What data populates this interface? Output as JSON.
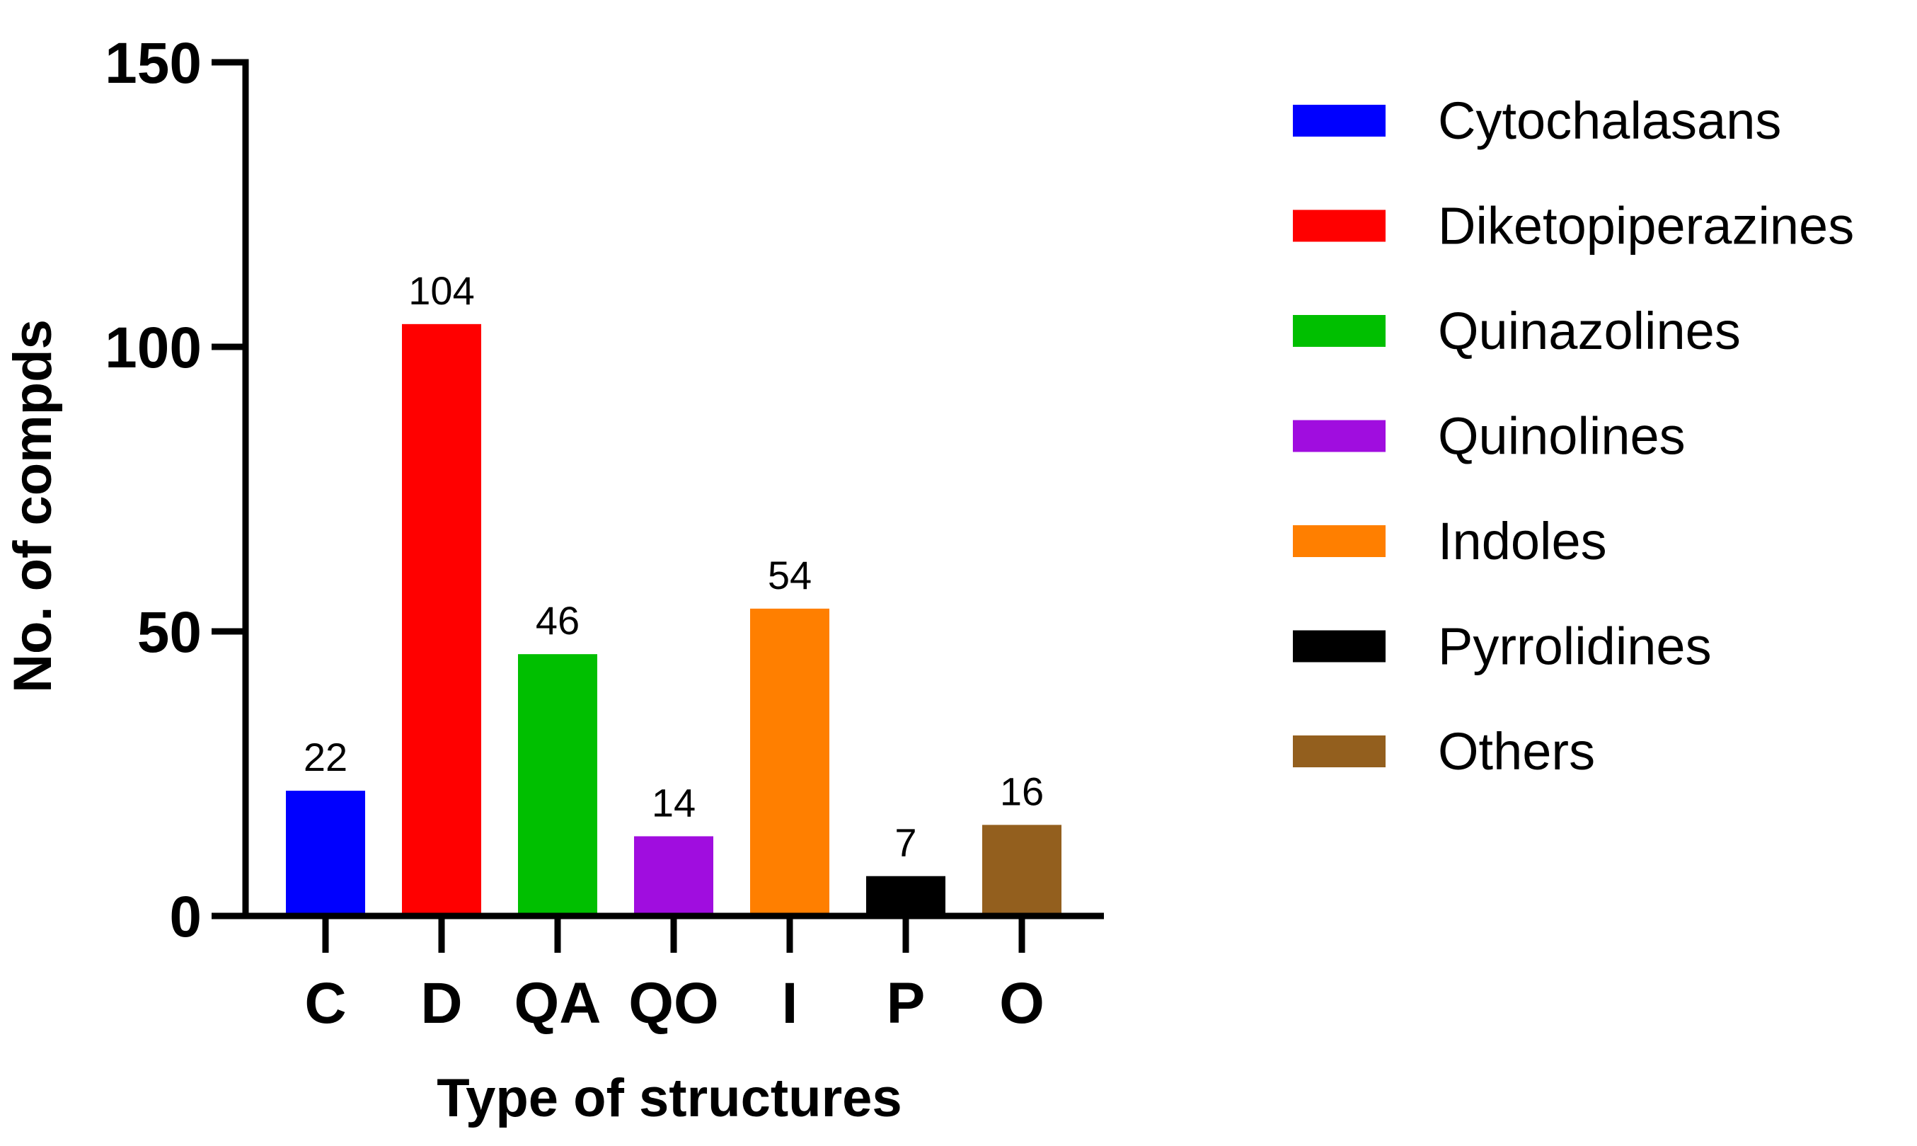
{
  "chart_data": {
    "type": "bar",
    "title": "",
    "xlabel": "Type of structures",
    "ylabel": "No. of compds",
    "ylim": [
      0,
      150
    ],
    "yticks": [
      0,
      50,
      100,
      150
    ],
    "grid": false,
    "legend_position": "right",
    "categories": [
      "C",
      "D",
      "QA",
      "QO",
      "I",
      "P",
      "O"
    ],
    "values": [
      22,
      104,
      46,
      14,
      54,
      7,
      16
    ],
    "data_labels": [
      "22",
      "104",
      "46",
      "14",
      "54",
      "7",
      "16"
    ],
    "series_names": [
      "Cytochalasans",
      "Diketopiperazines",
      "Quinazolines",
      "Quinolines",
      "Indoles",
      "Pyrrolidines",
      "Others"
    ],
    "colors": [
      "#0000ff",
      "#ff0000",
      "#00bf00",
      "#a00ddf",
      "#ff7f00",
      "#000000",
      "#935f1e"
    ]
  }
}
